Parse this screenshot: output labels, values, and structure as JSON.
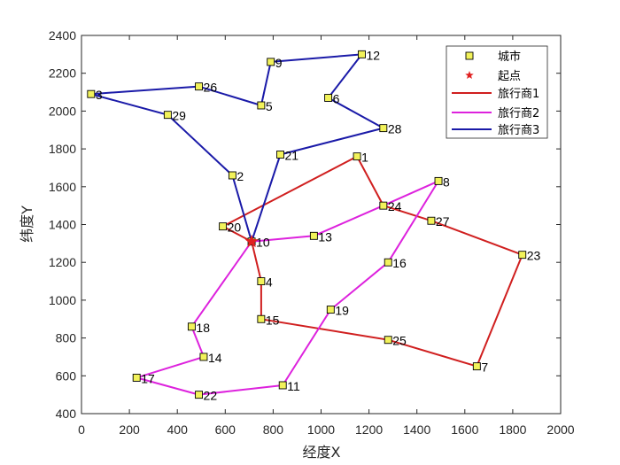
{
  "chart_data": {
    "type": "scatter",
    "xlabel": "经度X",
    "ylabel": "纬度Y",
    "xlim": [
      0,
      2000
    ],
    "ylim": [
      400,
      2400
    ],
    "xticks": [
      0,
      200,
      400,
      600,
      800,
      1000,
      1200,
      1400,
      1600,
      1800,
      2000
    ],
    "yticks": [
      400,
      600,
      800,
      1000,
      1200,
      1400,
      1600,
      1800,
      2000,
      2200,
      2400
    ],
    "grid": false,
    "legend_position": "top-right",
    "cities": [
      {
        "id": "1",
        "x": 1150,
        "y": 1760
      },
      {
        "id": "2",
        "x": 630,
        "y": 1660
      },
      {
        "id": "3",
        "x": 40,
        "y": 2090
      },
      {
        "id": "4",
        "x": 750,
        "y": 1100
      },
      {
        "id": "5",
        "x": 750,
        "y": 2030
      },
      {
        "id": "6",
        "x": 1030,
        "y": 2070
      },
      {
        "id": "7",
        "x": 1650,
        "y": 650
      },
      {
        "id": "8",
        "x": 1490,
        "y": 1630
      },
      {
        "id": "9",
        "x": 790,
        "y": 2260
      },
      {
        "id": "10",
        "x": 710,
        "y": 1310
      },
      {
        "id": "11",
        "x": 840,
        "y": 550
      },
      {
        "id": "12",
        "x": 1170,
        "y": 2300
      },
      {
        "id": "13",
        "x": 970,
        "y": 1340
      },
      {
        "id": "14",
        "x": 510,
        "y": 700
      },
      {
        "id": "15",
        "x": 750,
        "y": 900
      },
      {
        "id": "16",
        "x": 1280,
        "y": 1200
      },
      {
        "id": "17",
        "x": 230,
        "y": 590
      },
      {
        "id": "18",
        "x": 460,
        "y": 860
      },
      {
        "id": "19",
        "x": 1040,
        "y": 950
      },
      {
        "id": "20",
        "x": 590,
        "y": 1390
      },
      {
        "id": "21",
        "x": 830,
        "y": 1770
      },
      {
        "id": "22",
        "x": 490,
        "y": 500
      },
      {
        "id": "23",
        "x": 1840,
        "y": 1240
      },
      {
        "id": "24",
        "x": 1260,
        "y": 1500
      },
      {
        "id": "25",
        "x": 1280,
        "y": 790
      },
      {
        "id": "26",
        "x": 490,
        "y": 2130
      },
      {
        "id": "27",
        "x": 1460,
        "y": 1420
      },
      {
        "id": "28",
        "x": 1260,
        "y": 1910
      },
      {
        "id": "29",
        "x": 360,
        "y": 1980
      }
    ],
    "start": {
      "x": 710,
      "y": 1310
    },
    "series": [
      {
        "name": "旅行商1",
        "color": "#d01f1f",
        "route": [
          "10",
          "4",
          "15",
          "25",
          "7",
          "23",
          "27",
          "24",
          "1",
          "20",
          "10"
        ]
      },
      {
        "name": "旅行商2",
        "color": "#dd22dd",
        "route": [
          "10",
          "13",
          "24",
          "8",
          "16",
          "19",
          "11",
          "22",
          "17",
          "14",
          "18",
          "10"
        ]
      },
      {
        "name": "旅行商3",
        "color": "#1a1aa8",
        "route": [
          "10",
          "21",
          "28",
          "6",
          "12",
          "9",
          "5",
          "26",
          "3",
          "29",
          "2",
          "10"
        ]
      }
    ],
    "legend": {
      "cities_label": "城市",
      "start_label": "起点"
    },
    "colors": {
      "city_fill": "#f2f25a",
      "start": "#e02020",
      "axis": "#262626"
    }
  }
}
